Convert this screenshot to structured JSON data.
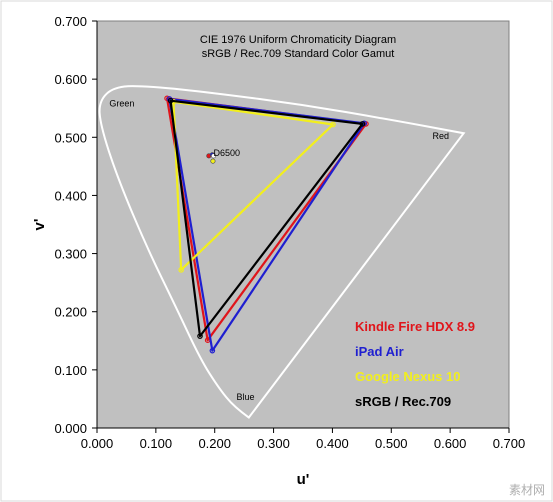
{
  "chart_data": {
    "type": "scatter",
    "title": "CIE 1976 Uniform Chromaticity Diagram",
    "subtitle": "sRGB / Rec.709 Standard Color Gamut",
    "xlabel": "u'",
    "ylabel": "v'",
    "xlim": [
      0.0,
      0.7
    ],
    "ylim": [
      0.0,
      0.7
    ],
    "x_ticks": [
      "0.000",
      "0.100",
      "0.200",
      "0.300",
      "0.400",
      "0.500",
      "0.600",
      "0.700"
    ],
    "y_ticks": [
      "0.000",
      "0.100",
      "0.200",
      "0.300",
      "0.400",
      "0.500",
      "0.600",
      "0.700"
    ],
    "grid": false,
    "legend_position": "bottom-right",
    "region_labels": [
      {
        "text": "Green",
        "u": 0.021,
        "v": 0.553
      },
      {
        "text": "Red",
        "u": 0.57,
        "v": 0.497
      },
      {
        "text": "Blue",
        "u": 0.237,
        "v": 0.048
      },
      {
        "text": "D6500",
        "u": 0.198,
        "v": 0.468
      }
    ],
    "locus": [
      [
        0.258,
        0.018
      ],
      [
        0.233,
        0.036
      ],
      [
        0.206,
        0.07
      ],
      [
        0.176,
        0.118
      ],
      [
        0.135,
        0.206
      ],
      [
        0.085,
        0.31
      ],
      [
        0.035,
        0.43
      ],
      [
        0.006,
        0.52
      ],
      [
        0.003,
        0.562
      ],
      [
        0.03,
        0.588
      ],
      [
        0.09,
        0.588
      ],
      [
        0.2,
        0.576
      ],
      [
        0.35,
        0.556
      ],
      [
        0.5,
        0.53
      ],
      [
        0.623,
        0.507
      ]
    ],
    "series": [
      {
        "name": "Kindle Fire HDX 8.9",
        "color": "#e0151b",
        "points": [
          [
            0.457,
            0.523
          ],
          [
            0.119,
            0.567
          ],
          [
            0.188,
            0.151
          ]
        ]
      },
      {
        "name": "iPad Air",
        "color": "#1f1fd0",
        "points": [
          [
            0.454,
            0.524
          ],
          [
            0.123,
            0.566
          ],
          [
            0.196,
            0.133
          ]
        ]
      },
      {
        "name": "Google Nexus 10",
        "color": "#f2ef1c",
        "points": [
          [
            0.401,
            0.522
          ],
          [
            0.13,
            0.561
          ],
          [
            0.143,
            0.272
          ]
        ]
      },
      {
        "name": "sRGB / Rec.709",
        "color": "#000000",
        "points": [
          [
            0.451,
            0.523
          ],
          [
            0.125,
            0.563
          ],
          [
            0.175,
            0.158
          ]
        ]
      }
    ],
    "white_points": [
      {
        "color": "#e0151b",
        "u": 0.19,
        "v": 0.468
      },
      {
        "color": "#1f1fd0",
        "u": 0.196,
        "v": 0.47
      },
      {
        "color": "#f2ef1c",
        "u": 0.197,
        "v": 0.459
      },
      {
        "color": "#ffffff",
        "u": 0.198,
        "v": 0.468
      }
    ]
  },
  "colors": {
    "plot_bg": "#c0c0c0",
    "locus": "#ffffff"
  },
  "watermark": "素材网"
}
